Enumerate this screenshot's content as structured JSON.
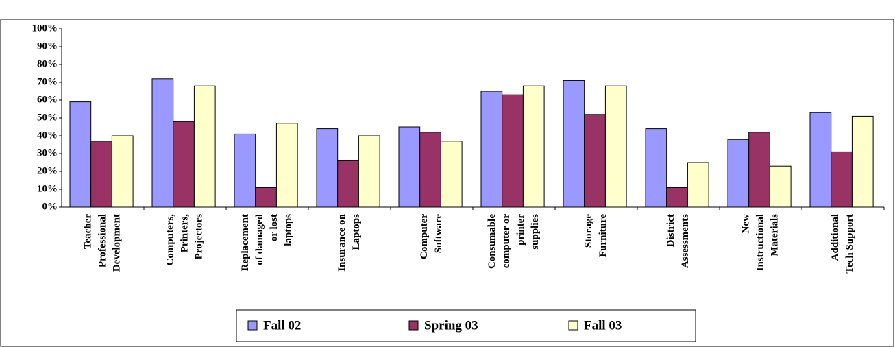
{
  "chart_data": {
    "type": "bar",
    "categories": [
      [
        "Teacher",
        "Professional",
        "Development"
      ],
      [
        "Computers,",
        "Printers,",
        "Projectors"
      ],
      [
        "Replacement",
        "of damaged",
        "or lost",
        "laptops"
      ],
      [
        "Insurance on",
        "Laptops"
      ],
      [
        "Computer",
        "Software"
      ],
      [
        "Consumable",
        "computer or",
        "printer",
        "supplies"
      ],
      [
        "Storage",
        "Furniture"
      ],
      [
        "District",
        "Assessments"
      ],
      [
        "New",
        "Instructional",
        "Materials"
      ],
      [
        "Additional",
        "Tech Support"
      ]
    ],
    "series": [
      {
        "name": "Fall 02",
        "color": "#9999ff",
        "values": [
          59,
          72,
          41,
          44,
          45,
          65,
          71,
          44,
          38,
          53
        ]
      },
      {
        "name": "Spring 03",
        "color": "#993366",
        "values": [
          37,
          48,
          11,
          26,
          42,
          63,
          52,
          11,
          42,
          31
        ]
      },
      {
        "name": "Fall 03",
        "color": "#ffffcc",
        "values": [
          40,
          68,
          47,
          40,
          37,
          68,
          68,
          25,
          23,
          51
        ]
      }
    ],
    "ylim": [
      0,
      100
    ],
    "yticks": [
      {
        "value": 0,
        "label": "0%"
      },
      {
        "value": 10,
        "label": "10%"
      },
      {
        "value": 20,
        "label": "20%"
      },
      {
        "value": 30,
        "label": "30%"
      },
      {
        "value": 40,
        "label": "40%"
      },
      {
        "value": 50,
        "label": "50%"
      },
      {
        "value": 60,
        "label": "60%"
      },
      {
        "value": 70,
        "label": "70%"
      },
      {
        "value": 80,
        "label": "80%"
      },
      {
        "value": 90,
        "label": "90%"
      },
      {
        "value": 100,
        "label": "100%"
      }
    ],
    "legend": "bottom"
  }
}
